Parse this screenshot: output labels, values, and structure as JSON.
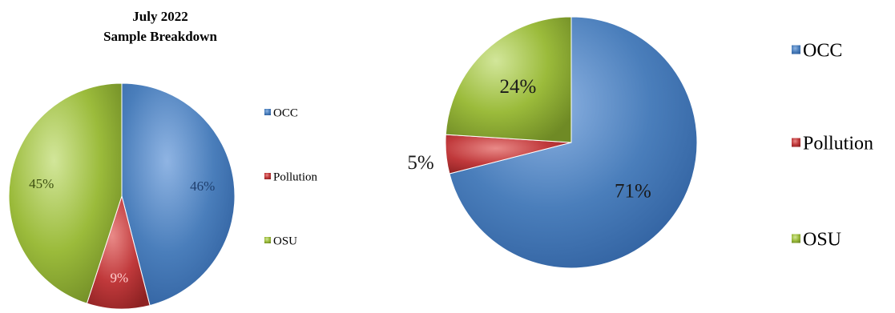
{
  "chart_data": [
    {
      "type": "pie",
      "title": "July 2022\nSample Breakdown",
      "categories": [
        "OCC",
        "Pollution",
        "OSU"
      ],
      "values": [
        46,
        9,
        45
      ],
      "labels": [
        "46%",
        "9%",
        "45%"
      ],
      "colors": [
        "#4A7EBB",
        "#C0393B",
        "#9BBB3B"
      ],
      "legend": "right"
    },
    {
      "type": "pie",
      "title": "",
      "categories": [
        "OCC",
        "Pollution",
        "OSU"
      ],
      "values": [
        71,
        5,
        24
      ],
      "labels": [
        "71%",
        "5%",
        "24%"
      ],
      "colors": [
        "#4A7EBB",
        "#C0393B",
        "#9BBB3B"
      ],
      "legend": "right"
    }
  ]
}
